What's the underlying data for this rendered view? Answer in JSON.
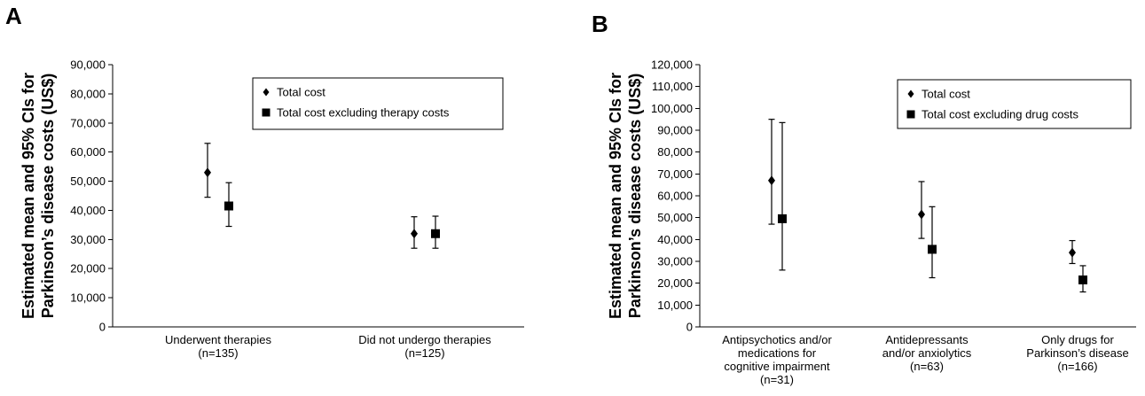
{
  "chart_data": [
    {
      "panel": "A",
      "type": "scatter",
      "ylabel": [
        "Estimated mean and 95% CIs for",
        "Parkinson’s disease costs (US$)"
      ],
      "ylim": [
        0,
        90000
      ],
      "yticks": [
        0,
        10000,
        20000,
        30000,
        40000,
        50000,
        60000,
        70000,
        80000,
        90000
      ],
      "ytick_labels": [
        "0",
        "10,000",
        "20,000",
        "30,000",
        "40,000",
        "50,000",
        "60,000",
        "70,000",
        "80,000",
        "90,000"
      ],
      "categories": [
        [
          "Underwent therapies",
          "(n=135)"
        ],
        [
          "Did not undergo therapies",
          "(n=125)"
        ]
      ],
      "legend_position": "top-right",
      "series": [
        {
          "name": "Total cost",
          "marker": "diamond",
          "mean": [
            53000,
            32000
          ],
          "lower": [
            44500,
            27000
          ],
          "upper": [
            63000,
            37800
          ]
        },
        {
          "name": "Total cost excluding therapy costs",
          "marker": "square",
          "mean": [
            41500,
            32000
          ],
          "lower": [
            34500,
            27000
          ],
          "upper": [
            49500,
            38000
          ]
        }
      ]
    },
    {
      "panel": "B",
      "type": "scatter",
      "ylabel": [
        "Estimated mean and 95% CIs for",
        "Parkinson’s disease costs (US$)"
      ],
      "ylim": [
        0,
        120000
      ],
      "yticks": [
        0,
        10000,
        20000,
        30000,
        40000,
        50000,
        60000,
        70000,
        80000,
        90000,
        100000,
        110000,
        120000
      ],
      "ytick_labels": [
        "0",
        "10,000",
        "20,000",
        "30,000",
        "40,000",
        "50,000",
        "60,000",
        "70,000",
        "80,000",
        "90,000",
        "100,000",
        "110,000",
        "120,000"
      ],
      "categories": [
        [
          "Antipsychotics and/or",
          "medications for",
          "cognitive impairment",
          "(n=31)"
        ],
        [
          "Antidepressants",
          "and/or anxiolytics",
          "(n=63)"
        ],
        [
          "Only drugs for",
          "Parkinson’s disease",
          "(n=166)"
        ]
      ],
      "legend_position": "top-right",
      "series": [
        {
          "name": "Total cost",
          "marker": "diamond",
          "mean": [
            67000,
            51500,
            34000
          ],
          "lower": [
            47000,
            40500,
            29000
          ],
          "upper": [
            95000,
            66500,
            39500
          ]
        },
        {
          "name": "Total cost excluding drug costs",
          "marker": "square",
          "mean": [
            49500,
            35500,
            21500
          ],
          "lower": [
            26000,
            22500,
            16000
          ],
          "upper": [
            93500,
            55000,
            28000
          ]
        }
      ]
    }
  ]
}
